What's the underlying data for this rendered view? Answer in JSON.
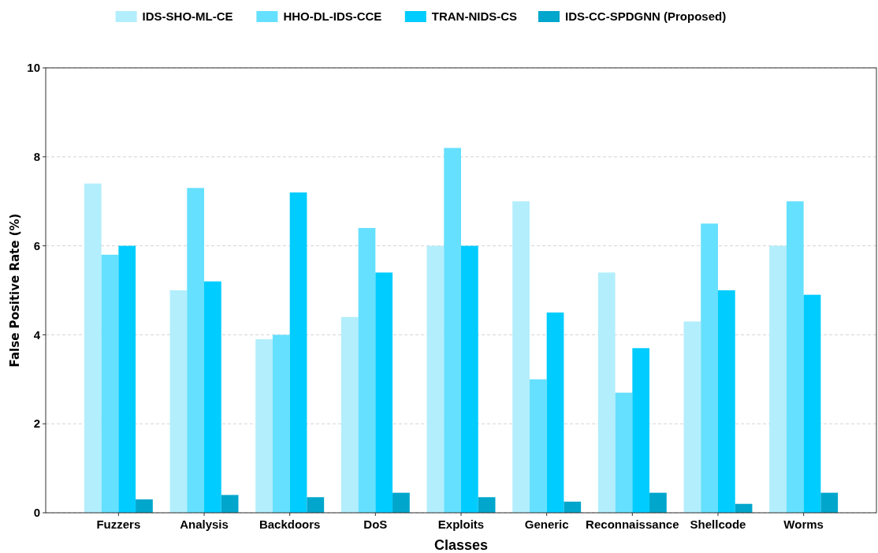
{
  "chart_data": {
    "type": "bar",
    "xlabel": "Classes",
    "ylabel": "False Positive Rate (%)",
    "categories": [
      "Fuzzers",
      "Analysis",
      "Backdoors",
      "DoS",
      "Exploits",
      "Generic",
      "Reconnaissance",
      "Shellcode",
      "Worms"
    ],
    "series": [
      {
        "name": "IDS-SHO-ML-CE",
        "color": "#b3eefc",
        "values": [
          7.4,
          5.0,
          3.9,
          4.4,
          6.0,
          7.0,
          5.4,
          4.3,
          6.0
        ]
      },
      {
        "name": "HHO-DL-IDS-CCE",
        "color": "#66e0ff",
        "values": [
          5.8,
          7.3,
          4.0,
          6.4,
          8.2,
          3.0,
          2.7,
          6.5,
          7.0
        ]
      },
      {
        "name": "TRAN-NIDS-CS",
        "color": "#00ccff",
        "values": [
          6.0,
          5.2,
          7.2,
          5.4,
          6.0,
          4.5,
          3.7,
          5.0,
          4.9
        ]
      },
      {
        "name": "IDS-CC-SPDGNN (Proposed)",
        "color": "#00a6cc",
        "values": [
          0.3,
          0.4,
          0.35,
          0.45,
          0.35,
          0.25,
          0.45,
          0.2,
          0.45
        ]
      }
    ],
    "ylim": [
      0,
      10
    ],
    "yticks": [
      0,
      2,
      4,
      6,
      8,
      10
    ],
    "grid": "y",
    "legend": "top"
  }
}
